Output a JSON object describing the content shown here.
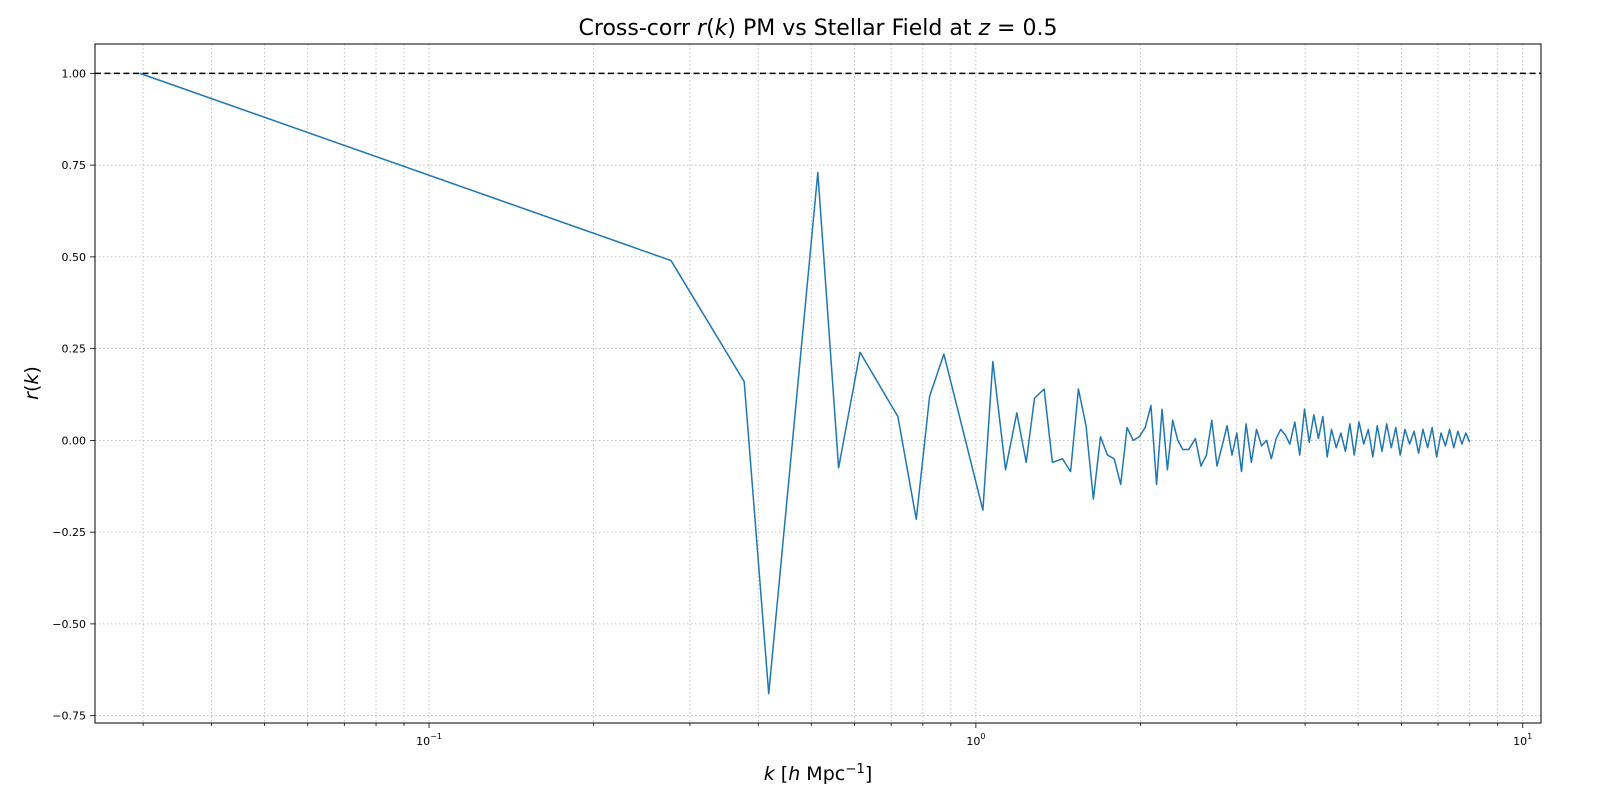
{
  "chart_data": {
    "type": "line",
    "title_parts": [
      {
        "text": "Cross-corr ",
        "italic": false
      },
      {
        "text": "r",
        "italic": true
      },
      {
        "text": "(",
        "italic": false
      },
      {
        "text": "k",
        "italic": true
      },
      {
        "text": ") PM vs Stellar Field at ",
        "italic": false
      },
      {
        "text": "z",
        "italic": true
      },
      {
        "text": " = 0.5",
        "italic": false
      }
    ],
    "xlabel_parts": [
      {
        "text": "k",
        "italic": true
      },
      {
        "text": " [",
        "italic": false
      },
      {
        "text": "h",
        "italic": true
      },
      {
        "text": " Mpc",
        "italic": false
      },
      {
        "text": "−1",
        "italic": false,
        "sup": true
      },
      {
        "text": "]",
        "italic": false
      }
    ],
    "ylabel_parts": [
      {
        "text": "r",
        "italic": true
      },
      {
        "text": "(",
        "italic": false
      },
      {
        "text": "k",
        "italic": true
      },
      {
        "text": ")",
        "italic": false
      }
    ],
    "xscale": "log",
    "xlim": [
      0.0245,
      10.8
    ],
    "ylim": [
      -0.77,
      1.08
    ],
    "grid": true,
    "xticks": [
      {
        "value": 0.1,
        "base": "10",
        "exp": "−1"
      },
      {
        "value": 1,
        "base": "10",
        "exp": "0"
      },
      {
        "value": 10,
        "base": "10",
        "exp": "1"
      }
    ],
    "yticks": [
      -0.75,
      -0.5,
      -0.25,
      0.0,
      0.25,
      0.5,
      0.75,
      1.0
    ],
    "ytick_labels": [
      "−0.75",
      "−0.50",
      "−0.25",
      "0.00",
      "0.25",
      "0.50",
      "0.75",
      "1.00"
    ],
    "reference_line": {
      "y": 1.0,
      "color": "#000000",
      "style": "dashed"
    },
    "series": [
      {
        "color": "#1f77b4",
        "x": [
          0.0296,
          0.277,
          0.377,
          0.418,
          0.514,
          0.561,
          0.614,
          0.72,
          0.778,
          0.823,
          0.874,
          1.03,
          1.074,
          1.133,
          1.188,
          1.236,
          1.28,
          1.333,
          1.38,
          1.44,
          1.49,
          1.54,
          1.59,
          1.64,
          1.69,
          1.74,
          1.79,
          1.84,
          1.89,
          1.94,
          1.99,
          2.04,
          2.09,
          2.14,
          2.19,
          2.24,
          2.29,
          2.34,
          2.39,
          2.45,
          2.52,
          2.58,
          2.64,
          2.7,
          2.76,
          2.82,
          2.88,
          2.94,
          3.0,
          3.06,
          3.12,
          3.19,
          3.26,
          3.33,
          3.4,
          3.47,
          3.54,
          3.61,
          3.68,
          3.75,
          3.83,
          3.91,
          3.99,
          4.07,
          4.15,
          4.23,
          4.31,
          4.39,
          4.47,
          4.56,
          4.65,
          4.74,
          4.83,
          4.92,
          5.02,
          5.12,
          5.22,
          5.32,
          5.42,
          5.53,
          5.64,
          5.75,
          5.86,
          5.97,
          6.09,
          6.21,
          6.33,
          6.45,
          6.57,
          6.7,
          6.83,
          6.96,
          7.09,
          7.22,
          7.35,
          7.48,
          7.61,
          7.74,
          7.87,
          8.0
        ],
        "y": [
          1.0,
          0.49,
          0.16,
          -0.69,
          0.73,
          -0.075,
          0.24,
          0.065,
          -0.215,
          0.12,
          0.235,
          -0.19,
          0.215,
          -0.08,
          0.075,
          -0.06,
          0.115,
          0.14,
          -0.06,
          -0.05,
          -0.085,
          0.14,
          0.04,
          -0.16,
          0.01,
          -0.04,
          -0.05,
          -0.12,
          0.035,
          0.0,
          0.01,
          0.035,
          0.095,
          -0.12,
          0.085,
          -0.08,
          0.055,
          0.0,
          -0.025,
          -0.025,
          0.005,
          -0.07,
          -0.04,
          0.055,
          -0.07,
          -0.015,
          0.04,
          -0.04,
          0.02,
          -0.085,
          0.045,
          -0.06,
          0.03,
          -0.015,
          0.0,
          -0.05,
          0.005,
          0.03,
          0.015,
          -0.01,
          0.05,
          -0.04,
          0.085,
          -0.005,
          0.07,
          0.005,
          0.065,
          -0.045,
          0.03,
          -0.02,
          0.02,
          -0.03,
          0.045,
          -0.04,
          0.05,
          -0.01,
          0.03,
          -0.045,
          0.04,
          -0.03,
          0.045,
          -0.02,
          0.035,
          -0.04,
          0.03,
          -0.01,
          0.025,
          -0.035,
          0.03,
          -0.02,
          0.035,
          -0.045,
          0.02,
          -0.015,
          0.03,
          -0.02,
          0.025,
          -0.01,
          0.02,
          -0.005
        ]
      }
    ]
  }
}
